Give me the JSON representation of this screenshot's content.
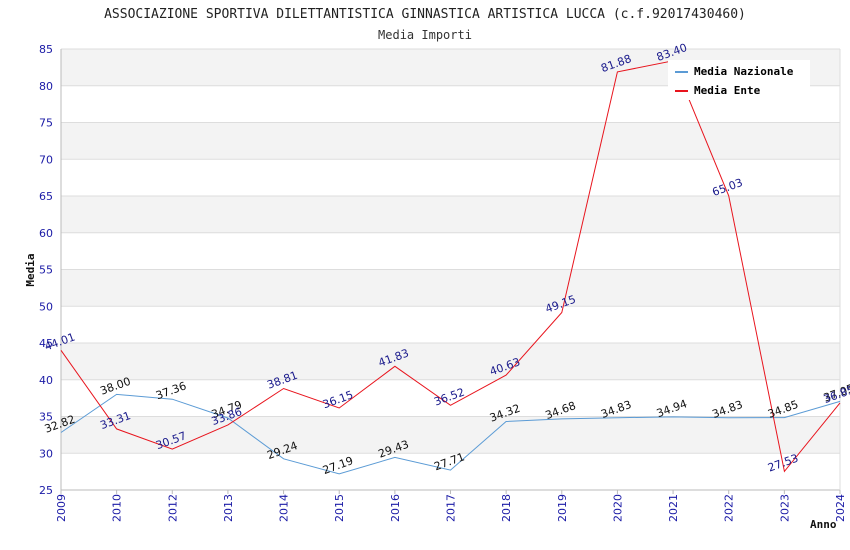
{
  "chart_data": {
    "type": "line",
    "title": "ASSOCIAZIONE SPORTIVA DILETTANTISTICA GINNASTICA ARTISTICA LUCCA (c.f.92017430460)",
    "subtitle": "Media Importi",
    "xlabel": "Anno",
    "ylabel": "Media",
    "ylim": [
      25,
      85
    ],
    "yticks": [
      25,
      30,
      35,
      40,
      45,
      50,
      55,
      60,
      65,
      70,
      75,
      80,
      85
    ],
    "categories": [
      "2009",
      "2010",
      "2012",
      "2013",
      "2014",
      "2015",
      "2016",
      "2017",
      "2018",
      "2019",
      "2020",
      "2021",
      "2022",
      "2023",
      "2024"
    ],
    "series": [
      {
        "name": "Media Nazionale",
        "color": "#5b9bd5",
        "values": [
          32.82,
          38.0,
          37.36,
          34.79,
          29.24,
          27.19,
          29.43,
          27.71,
          34.32,
          34.68,
          34.83,
          34.94,
          34.83,
          34.85,
          37.05
        ],
        "labels": [
          "32.82",
          "38.00",
          "37.36",
          "34.79",
          "29.24",
          "27.19",
          "29.43",
          "27.71",
          "34.32",
          "34.68",
          "34.83",
          "34.94",
          "34.83",
          "34.85",
          "37.05"
        ]
      },
      {
        "name": "Media Ente",
        "color": "#e8141d",
        "values": [
          44.01,
          33.31,
          30.57,
          33.86,
          38.81,
          36.15,
          41.83,
          36.52,
          40.63,
          49.15,
          81.88,
          83.4,
          65.03,
          27.53,
          36.85
        ],
        "labels": [
          "44.01",
          "33.31",
          "30.57",
          "33.86",
          "38.81",
          "36.15",
          "41.83",
          "36.52",
          "40.63",
          "49.15",
          "81.88",
          "83.40",
          "65.03",
          "27.53",
          "36.85"
        ]
      }
    ],
    "legend_position": "top-right",
    "grid": true
  }
}
